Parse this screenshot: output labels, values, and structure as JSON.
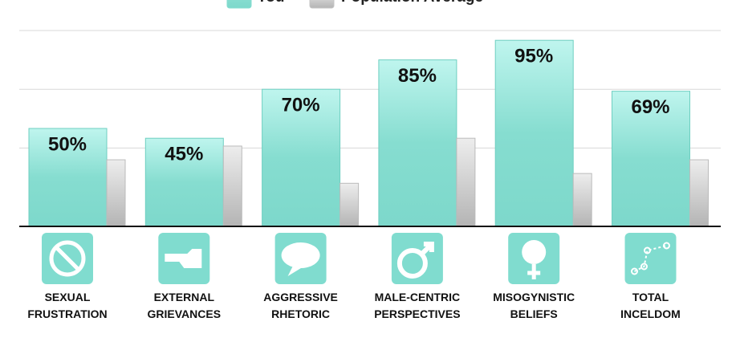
{
  "chart_data": {
    "type": "bar",
    "categories": [
      "SEXUAL FRUSTRATION",
      "EXTERNAL GRIEVANCES",
      "AGGRESSIVE RHETORIC",
      "MALE-CENTRIC PERSPECTIVES",
      "MISOGYNISTIC BELIEFS",
      "TOTAL INCELDOM"
    ],
    "series": [
      {
        "name": "You",
        "color": "#86ddd0",
        "values": [
          50,
          45,
          70,
          85,
          95,
          69
        ],
        "value_labels": [
          "50%",
          "45%",
          "70%",
          "85%",
          "95%",
          "69%"
        ]
      },
      {
        "name": "Population Average",
        "color": "#c4c4c4",
        "values": [
          34,
          41,
          22,
          45,
          27,
          34
        ]
      }
    ],
    "ylim": [
      0,
      100
    ],
    "yticks": [
      40,
      70,
      100
    ],
    "grid": true
  }
}
